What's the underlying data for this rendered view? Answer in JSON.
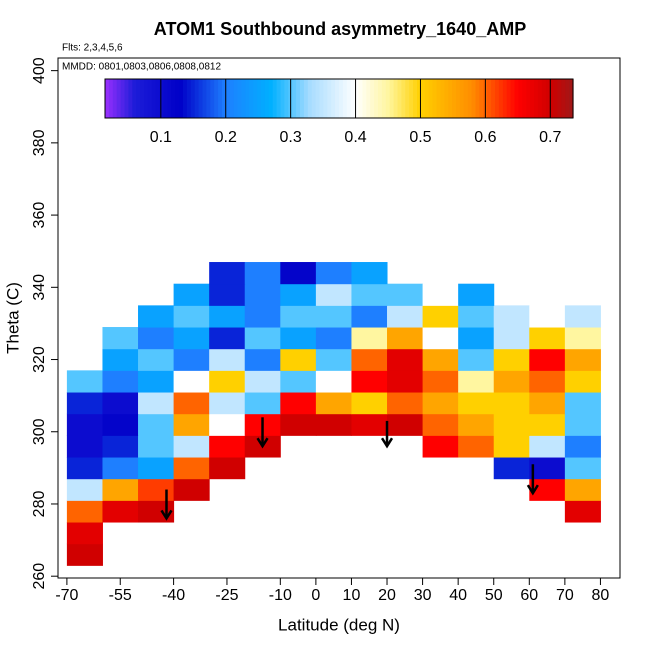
{
  "chart_data": {
    "type": "heatmap",
    "title": "ATOM1 Southbound asymmetry_1640_AMP",
    "annotations": [
      "Flts: 2,3,4,5,6",
      "MMDD: 0801,0803,0806,0808,0812"
    ],
    "x_label": "Latitude (deg N)",
    "y_label": "Theta (C)",
    "xlim": [
      -72.5,
      85.5
    ],
    "ylim": [
      259.5,
      403.5
    ],
    "xticks": [
      -70,
      -55,
      -40,
      -25,
      -10,
      0,
      10,
      20,
      30,
      40,
      50,
      60,
      70,
      80
    ],
    "yticks": [
      260,
      280,
      300,
      320,
      340,
      360,
      380,
      400
    ],
    "x_edges": [
      -70,
      -60,
      -50,
      -40,
      -30,
      -20,
      -10,
      0,
      10,
      20,
      30,
      40,
      50,
      60,
      70,
      80
    ],
    "y_edges": [
      263,
      269,
      275,
      281,
      287,
      293,
      299,
      305,
      311,
      317,
      323,
      329,
      335,
      341,
      347
    ],
    "values": [
      [
        0.7,
        null,
        null,
        null,
        null,
        null,
        null,
        null,
        null,
        null,
        null,
        null,
        null,
        null,
        null
      ],
      [
        0.68,
        null,
        null,
        null,
        null,
        null,
        null,
        null,
        null,
        null,
        null,
        null,
        null,
        null,
        null
      ],
      [
        0.6,
        0.68,
        0.7,
        null,
        null,
        null,
        null,
        null,
        null,
        null,
        null,
        null,
        null,
        null,
        0.68
      ],
      [
        0.35,
        0.55,
        0.62,
        0.7,
        null,
        null,
        null,
        null,
        null,
        null,
        null,
        null,
        null,
        0.65,
        0.55
      ],
      [
        0.15,
        0.2,
        0.25,
        0.6,
        0.7,
        null,
        null,
        null,
        null,
        null,
        null,
        null,
        0.15,
        0.1,
        0.3
      ],
      [
        0.1,
        0.15,
        0.3,
        0.35,
        0.65,
        0.7,
        null,
        null,
        null,
        null,
        0.65,
        0.6,
        0.5,
        0.35,
        0.2
      ],
      [
        0.1,
        0.12,
        0.3,
        0.55,
        0.4,
        0.65,
        0.7,
        0.7,
        0.68,
        0.7,
        0.6,
        0.55,
        0.5,
        0.5,
        0.3
      ],
      [
        0.15,
        0.1,
        0.35,
        0.6,
        0.35,
        0.3,
        0.65,
        0.55,
        0.5,
        0.6,
        0.55,
        0.5,
        0.5,
        0.55,
        0.3
      ],
      [
        0.3,
        0.2,
        0.25,
        0.4,
        0.5,
        0.35,
        0.3,
        0.4,
        0.65,
        0.68,
        0.6,
        0.45,
        0.55,
        0.6,
        0.5
      ],
      [
        null,
        0.25,
        0.3,
        0.2,
        0.35,
        0.2,
        0.5,
        0.3,
        0.6,
        0.68,
        0.55,
        0.3,
        0.5,
        0.65,
        0.55
      ],
      [
        null,
        0.3,
        0.2,
        0.25,
        0.15,
        0.3,
        0.25,
        0.2,
        0.45,
        0.55,
        0.4,
        0.25,
        0.35,
        0.5,
        0.45
      ],
      [
        null,
        null,
        0.25,
        0.3,
        0.25,
        0.2,
        0.3,
        0.3,
        0.2,
        0.35,
        0.5,
        0.3,
        0.35,
        0.4,
        0.35
      ],
      [
        null,
        null,
        null,
        0.25,
        0.15,
        0.2,
        0.25,
        0.35,
        0.3,
        0.3,
        0.4,
        0.25,
        null,
        null,
        null
      ],
      [
        null,
        null,
        null,
        null,
        0.15,
        0.2,
        0.12,
        0.2,
        0.25,
        null,
        null,
        null,
        null,
        null,
        null
      ]
    ],
    "colorbar": {
      "lim": [
        0.014,
        0.735
      ],
      "ticks": [
        0.1,
        0.2,
        0.3,
        0.4,
        0.5,
        0.6,
        0.7
      ]
    },
    "colormap": [
      [
        0.014,
        "#9b30ff"
      ],
      [
        0.06,
        "#1c1cd8"
      ],
      [
        0.13,
        "#0000c8"
      ],
      [
        0.2,
        "#1e7fff"
      ],
      [
        0.27,
        "#00b0ff"
      ],
      [
        0.33,
        "#a8dcff"
      ],
      [
        0.4,
        "#ffffff"
      ],
      [
        0.45,
        "#fff6a0"
      ],
      [
        0.5,
        "#ffd000"
      ],
      [
        0.58,
        "#ff8c00"
      ],
      [
        0.65,
        "#ff0000"
      ],
      [
        0.7,
        "#d00000"
      ],
      [
        0.735,
        "#a01818"
      ]
    ],
    "arrows": [
      {
        "x": -42,
        "y_start": 284,
        "y_end": 276
      },
      {
        "x": -15,
        "y_start": 304,
        "y_end": 296
      },
      {
        "x": 20,
        "y_start": 303,
        "y_end": 296
      },
      {
        "x": 61,
        "y_start": 291,
        "y_end": 283
      }
    ]
  }
}
